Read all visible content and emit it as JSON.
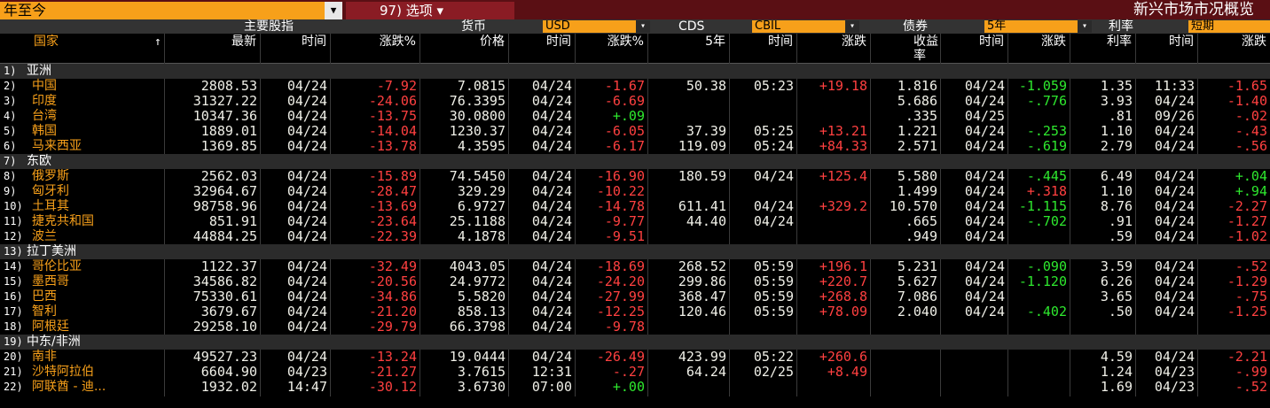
{
  "toolbar": {
    "period": "年至今",
    "options_label": "97) 选项",
    "title": "新兴市场市况概览"
  },
  "sections": [
    {
      "label": "主要股指",
      "rising": "good"
    },
    {
      "label": "货币",
      "selector": "USD",
      "rising": "good"
    },
    {
      "label": "CDS",
      "selector": "CBIL",
      "rising": "bad"
    },
    {
      "label": "债券",
      "selector": "5年",
      "rising": "bad"
    },
    {
      "label": "利率",
      "selector": "短期",
      "rising": "good"
    }
  ],
  "columns": {
    "country": "国家",
    "sort_indicator": "↑",
    "fields": [
      "最新",
      "时间",
      "涨跌%",
      "价格",
      "时间",
      "涨跌%",
      "5年",
      "时间",
      "涨跌",
      "收益率",
      "时间",
      "涨跌",
      "利率",
      "时间",
      "涨跌"
    ]
  },
  "rows": [
    {
      "num": "1)",
      "label": "亚洲",
      "group": true
    },
    {
      "num": "2)",
      "label": "中国",
      "cells": [
        "2808.53",
        "04/24",
        "-7.92",
        "7.0815",
        "04/24",
        "-1.67",
        "50.38",
        "05:23",
        "+19.18",
        "1.816",
        "04/24",
        "-1.059",
        "1.35",
        "11:33",
        "-1.65"
      ]
    },
    {
      "num": "3)",
      "label": "印度",
      "cells": [
        "31327.22",
        "04/24",
        "-24.06",
        "76.3395",
        "04/24",
        "-6.69",
        null,
        null,
        null,
        "5.686",
        "04/24",
        "-.776",
        "3.93",
        "04/24",
        "-1.40"
      ]
    },
    {
      "num": "4)",
      "label": "台湾",
      "cells": [
        "10347.36",
        "04/24",
        "-13.75",
        "30.0800",
        "04/24",
        "+.09",
        null,
        null,
        null,
        ".335",
        "04/25",
        null,
        ".81",
        "09/26",
        "-.02"
      ]
    },
    {
      "num": "5)",
      "label": "韩国",
      "cells": [
        "1889.01",
        "04/24",
        "-14.04",
        "1230.37",
        "04/24",
        "-6.05",
        "37.39",
        "05:25",
        "+13.21",
        "1.221",
        "04/24",
        "-.253",
        "1.10",
        "04/24",
        "-.43"
      ]
    },
    {
      "num": "6)",
      "label": "马来西亚",
      "cells": [
        "1369.85",
        "04/24",
        "-13.78",
        "4.3595",
        "04/24",
        "-6.17",
        "119.09",
        "05:24",
        "+84.33",
        "2.571",
        "04/24",
        "-.619",
        "2.79",
        "04/24",
        "-.56"
      ]
    },
    {
      "num": "7)",
      "label": "东欧",
      "group": true
    },
    {
      "num": "8)",
      "label": "俄罗斯",
      "cells": [
        "2562.03",
        "04/24",
        "-15.89",
        "74.5450",
        "04/24",
        "-16.90",
        "180.59",
        "04/24",
        "+125.4",
        "5.580",
        "04/24",
        "-.445",
        "6.49",
        "04/24",
        "+.04"
      ]
    },
    {
      "num": "9)",
      "label": "匈牙利",
      "cells": [
        "32964.67",
        "04/24",
        "-28.47",
        "329.29",
        "04/24",
        "-10.22",
        null,
        null,
        null,
        "1.499",
        "04/24",
        "+.318",
        "1.10",
        "04/24",
        "+.94"
      ]
    },
    {
      "num": "10)",
      "label": "土耳其",
      "cells": [
        "98758.96",
        "04/24",
        "-13.69",
        "6.9727",
        "04/24",
        "-14.78",
        "611.41",
        "04/24",
        "+329.2",
        "10.570",
        "04/24",
        "-1.115",
        "8.76",
        "04/24",
        "-2.27"
      ]
    },
    {
      "num": "11)",
      "label": "捷克共和国",
      "cells": [
        "851.91",
        "04/24",
        "-23.64",
        "25.1188",
        "04/24",
        "-9.77",
        "44.40",
        "04/24",
        null,
        ".665",
        "04/24",
        "-.702",
        ".91",
        "04/24",
        "-1.27"
      ]
    },
    {
      "num": "12)",
      "label": "波兰",
      "cells": [
        "44884.25",
        "04/24",
        "-22.39",
        "4.1878",
        "04/24",
        "-9.51",
        null,
        null,
        null,
        ".949",
        "04/24",
        null,
        ".59",
        "04/24",
        "-1.02"
      ]
    },
    {
      "num": "13)",
      "label": "拉丁美洲",
      "group": true
    },
    {
      "num": "14)",
      "label": "哥伦比亚",
      "cells": [
        "1122.37",
        "04/24",
        "-32.49",
        "4043.05",
        "04/24",
        "-18.69",
        "268.52",
        "05:59",
        "+196.1",
        "5.231",
        "04/24",
        "-.090",
        "3.59",
        "04/24",
        "-.52"
      ]
    },
    {
      "num": "15)",
      "label": "墨西哥",
      "cells": [
        "34586.82",
        "04/24",
        "-20.56",
        "24.9772",
        "04/24",
        "-24.20",
        "299.86",
        "05:59",
        "+220.7",
        "5.627",
        "04/24",
        "-1.120",
        "6.26",
        "04/24",
        "-1.29"
      ]
    },
    {
      "num": "16)",
      "label": "巴西",
      "cells": [
        "75330.61",
        "04/24",
        "-34.86",
        "5.5820",
        "04/24",
        "-27.99",
        "368.47",
        "05:59",
        "+268.8",
        "7.086",
        "04/24",
        null,
        "3.65",
        "04/24",
        "-.75"
      ]
    },
    {
      "num": "17)",
      "label": "智利",
      "cells": [
        "3679.67",
        "04/24",
        "-21.20",
        "858.13",
        "04/24",
        "-12.25",
        "120.46",
        "05:59",
        "+78.09",
        "2.040",
        "04/24",
        "-.402",
        ".50",
        "04/24",
        "-1.25"
      ]
    },
    {
      "num": "18)",
      "label": "阿根廷",
      "cells": [
        "29258.10",
        "04/24",
        "-29.79",
        "66.3798",
        "04/24",
        "-9.78",
        null,
        null,
        null,
        null,
        null,
        null,
        null,
        null,
        null
      ]
    },
    {
      "num": "19)",
      "label": "中东/非洲",
      "group": true
    },
    {
      "num": "20)",
      "label": "南非",
      "cells": [
        "49527.23",
        "04/24",
        "-13.24",
        "19.0444",
        "04/24",
        "-26.49",
        "423.99",
        "05:22",
        "+260.6",
        null,
        null,
        null,
        "4.59",
        "04/24",
        "-2.21"
      ]
    },
    {
      "num": "21)",
      "label": "沙特阿拉伯",
      "cells": [
        "6604.90",
        "04/23",
        "-21.27",
        "3.7615",
        "12:31",
        "-.27",
        "64.24",
        "02/25",
        "+8.49",
        null,
        null,
        null,
        "1.24",
        "04/23",
        "-.99"
      ]
    },
    {
      "num": "22)",
      "label": "阿联酋 - 迪...",
      "cells": [
        "1932.02",
        "14:47",
        "-30.12",
        "3.6730",
        "07:00",
        "+.00",
        null,
        null,
        null,
        null,
        null,
        null,
        "1.69",
        "04/23",
        "-.52"
      ]
    }
  ]
}
